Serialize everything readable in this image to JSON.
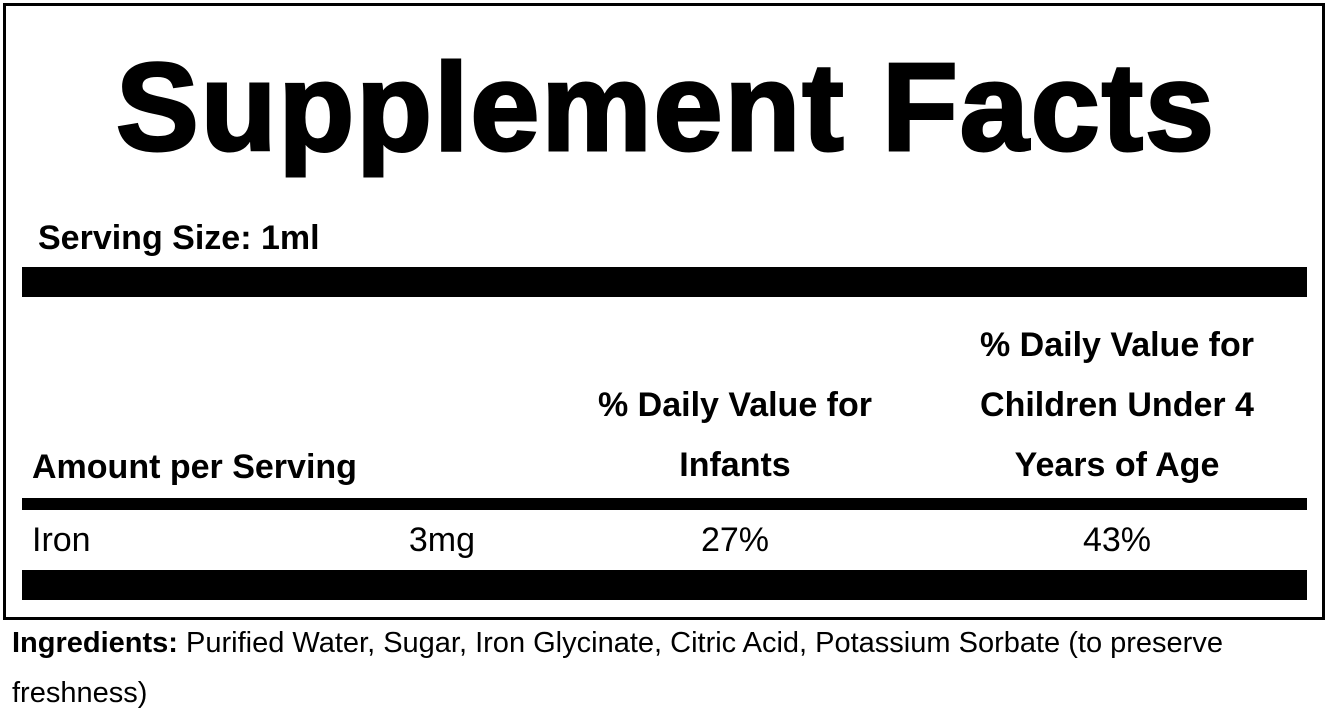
{
  "header": {
    "title": "Supplement Facts",
    "serving_size": "Serving Size: 1ml"
  },
  "table": {
    "columns": [
      [
        "Amount per Serving"
      ],
      [
        "% Daily Value for",
        "Infants"
      ],
      [
        "% Daily Value for",
        "Children Under 4",
        "Years of Age"
      ]
    ],
    "rows": [
      [
        "Iron",
        "3mg",
        "27%",
        "43%"
      ]
    ]
  },
  "ingredients": {
    "label": "Ingredients:",
    "text": "Purified Water, Sugar, Iron Glycinate, Citric Acid, Potassium Sorbate (to preserve freshness)"
  }
}
